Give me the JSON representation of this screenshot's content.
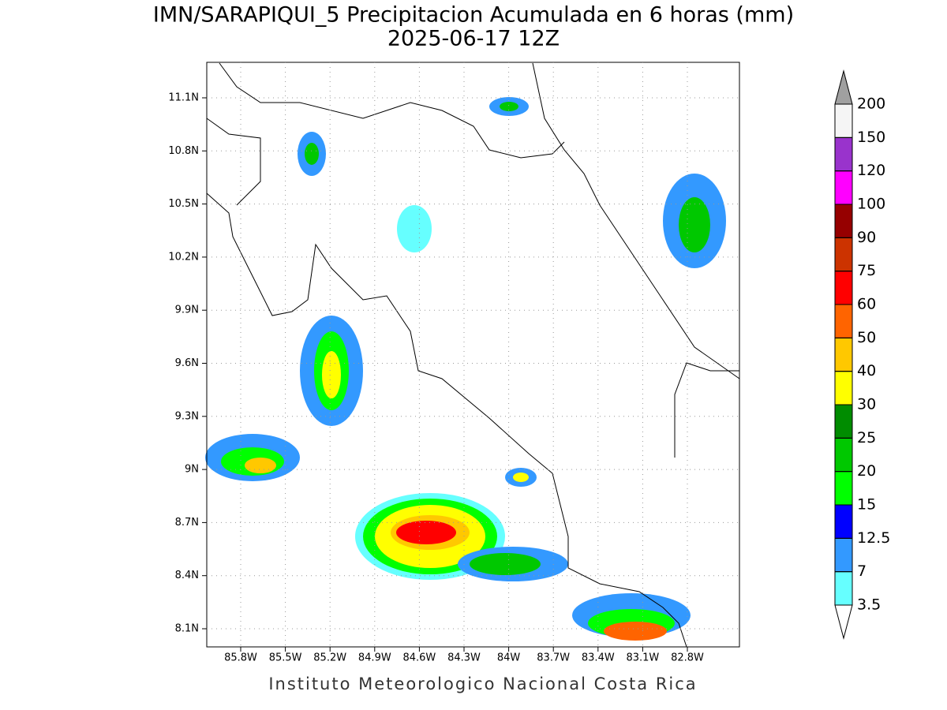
{
  "map": {
    "title": "IMN/SARAPIQUI_5 Precipitacion Acumulada en 6 horas (mm)",
    "subtitle": "2025-06-17 12Z",
    "lon_ticks": [
      "85.8W",
      "85.5W",
      "85.2W",
      "84.9W",
      "84.6W",
      "84.3W",
      "84W",
      "83.7W",
      "83.4W",
      "83.1W",
      "82.8W"
    ],
    "lat_ticks": [
      "11.1N",
      "10.8N",
      "10.5N",
      "10.2N",
      "9.9N",
      "9.6N",
      "9.3N",
      "9N",
      "8.7N",
      "8.4N",
      "8.1N"
    ],
    "colorbar": {
      "levels": [
        3.5,
        7,
        12.5,
        15,
        20,
        25,
        30,
        40,
        50,
        60,
        75,
        90,
        100,
        120,
        150,
        200
      ],
      "colors": [
        "#66ffff",
        "#3399ff",
        "#0000ff",
        "#00ff00",
        "#00c800",
        "#008c00",
        "#ffff00",
        "#ffc800",
        "#ff6400",
        "#ff0000",
        "#cc3300",
        "#960000",
        "#ff00ff",
        "#9933cc",
        "#f5f5f5"
      ],
      "under_color": "#ffffff",
      "over_color": "#a0a0a0"
    },
    "footer": "Instituto Meteorologico Nacional Costa Rica"
  }
}
